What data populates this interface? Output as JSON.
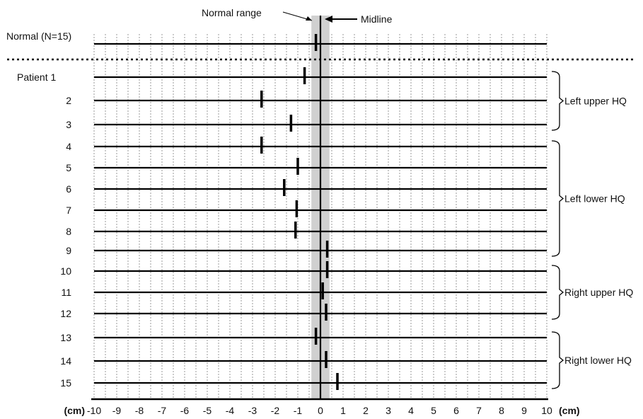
{
  "chart_data": {
    "type": "scatter",
    "x_axis": {
      "min": -10,
      "max": 10,
      "ticks": [
        -10,
        -9,
        -8,
        -7,
        -6,
        -5,
        -4,
        -3,
        -2,
        -1,
        0,
        1,
        2,
        3,
        4,
        5,
        6,
        7,
        8,
        9,
        10
      ],
      "tick_labels": [
        "-10",
        "-9",
        "-8",
        "-7",
        "-6",
        "-5",
        "-4",
        "-3",
        "-2",
        "-1",
        "0",
        "1",
        "2",
        "3",
        "4",
        "5",
        "6",
        "7",
        "8",
        "9",
        "10"
      ],
      "unit_left": "(cm)",
      "unit_right": "(cm)",
      "minor_grid_step": 0.5
    },
    "normal_range": {
      "min": -0.4,
      "max": 0.4,
      "label": "Normal range"
    },
    "midline": {
      "x": 0,
      "label": "Midline"
    },
    "rows": [
      {
        "label": "Normal (N=15)",
        "value": -0.2
      },
      {
        "label": "Patient 1",
        "value": -0.7
      },
      {
        "label": "2",
        "value": -2.6
      },
      {
        "label": "3",
        "value": -1.3
      },
      {
        "label": "4",
        "value": -2.6
      },
      {
        "label": "5",
        "value": -1.0
      },
      {
        "label": "6",
        "value": -1.6
      },
      {
        "label": "7",
        "value": -1.05
      },
      {
        "label": "8",
        "value": -1.1
      },
      {
        "label": "9",
        "value": 0.3
      },
      {
        "label": "10",
        "value": 0.3
      },
      {
        "label": "11",
        "value": 0.1
      },
      {
        "label": "12",
        "value": 0.25
      },
      {
        "label": "13",
        "value": -0.2
      },
      {
        "label": "14",
        "value": 0.25
      },
      {
        "label": "15",
        "value": 0.75
      }
    ],
    "groups": [
      {
        "label": "Left upper HQ",
        "from_row": 1,
        "to_row": 3
      },
      {
        "label": "Left lower HQ",
        "from_row": 4,
        "to_row": 9
      },
      {
        "label": "Right upper HQ",
        "from_row": 10,
        "to_row": 12
      },
      {
        "label": "Right lower HQ",
        "from_row": 13,
        "to_row": 15
      }
    ],
    "grid": true,
    "separator_after_row": 0
  }
}
